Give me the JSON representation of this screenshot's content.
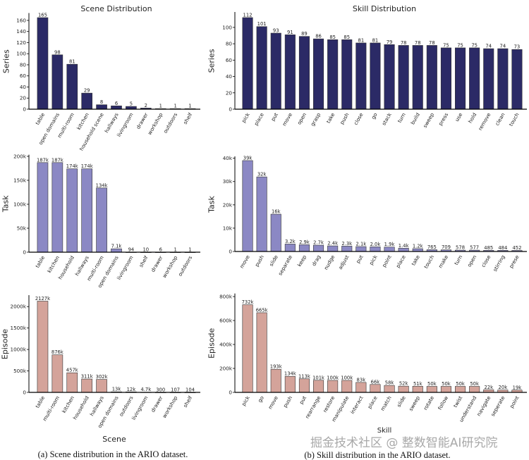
{
  "titles": {
    "scene": "Scene Distribution",
    "skill": "Skill Distribution"
  },
  "xlabels": {
    "scene": "Scene",
    "skill": "Skill"
  },
  "captions": {
    "a": "(a) Scene distribution in the ARIO dataset.",
    "b": "(b) Skill distribution in the ARIO dataset."
  },
  "watermark": "掘金技术社区 @ 整数智能AI研究院",
  "colors": {
    "series": "#2b2a66",
    "task": "#8b88c4",
    "episode": "#d4a39a",
    "edge": "#333333"
  },
  "chart_data": [
    {
      "type": "bar",
      "title": "Scene Distribution",
      "xlabel": "",
      "ylabel": "Series",
      "color": "#2b2a66",
      "categories": [
        "table",
        "open domains",
        "multi-room",
        "kitchen",
        "household scene",
        "hallways",
        "livingroom",
        "drawer",
        "workshop",
        "outdoors",
        "shelf"
      ],
      "values": [
        165,
        98,
        81,
        29,
        8,
        6,
        5,
        2,
        1,
        1,
        1
      ],
      "labels": [
        "165",
        "98",
        "81",
        "29",
        "8",
        "6",
        "5",
        "2",
        "1",
        "1",
        "1"
      ],
      "ylim": [
        0,
        172
      ],
      "yticks": [
        0,
        20,
        40,
        60,
        80,
        100,
        120,
        140,
        160
      ],
      "yticklabels": [
        "0",
        "20",
        "40",
        "60",
        "80",
        "100",
        "120",
        "140",
        "160"
      ],
      "grid": false
    },
    {
      "type": "bar",
      "title": "Skill Distribution",
      "xlabel": "",
      "ylabel": "Series",
      "color": "#2b2a66",
      "categories": [
        "pick",
        "place",
        "put",
        "move",
        "open",
        "grasp",
        "take",
        "push",
        "close",
        "go",
        "stack",
        "turn",
        "build",
        "sweep",
        "press",
        "use",
        "hold",
        "remove",
        "clean",
        "touch"
      ],
      "values": [
        112,
        101,
        93,
        91,
        89,
        86,
        85,
        85,
        81,
        81,
        79,
        78,
        78,
        78,
        75,
        75,
        75,
        74,
        74,
        73
      ],
      "labels": [
        "112",
        "101",
        "93",
        "91",
        "89",
        "86",
        "85",
        "85",
        "81",
        "81",
        "79",
        "78",
        "78",
        "78",
        "75",
        "75",
        "75",
        "74",
        "74",
        "73"
      ],
      "ylim": [
        0,
        118
      ],
      "yticks": [
        0,
        20,
        40,
        60,
        80,
        100
      ],
      "yticklabels": [
        "0",
        "20",
        "40",
        "60",
        "80",
        "100"
      ],
      "grid": false
    },
    {
      "type": "bar",
      "title": "",
      "xlabel": "",
      "ylabel": "Task",
      "color": "#8b88c4",
      "categories": [
        "table",
        "kitchen",
        "household",
        "hallways",
        "multi-room",
        "open domains",
        "livingroom",
        "shelf",
        "drawer",
        "workshop",
        "outdoors"
      ],
      "values": [
        187000,
        187000,
        174000,
        174000,
        134000,
        7100,
        94,
        10,
        6,
        1,
        1
      ],
      "labels": [
        "187k",
        "187k",
        "174k",
        "174k",
        "134k",
        "7.1k",
        "94",
        "10",
        "6",
        "1",
        "1"
      ],
      "ylim": [
        0,
        202000
      ],
      "yticks": [
        0,
        50000,
        100000,
        150000,
        200000
      ],
      "yticklabels": [
        "0",
        "50k",
        "100k",
        "150k",
        "200k"
      ],
      "grid": false
    },
    {
      "type": "bar",
      "title": "",
      "xlabel": "",
      "ylabel": "Task",
      "color": "#8b88c4",
      "categories": [
        "move",
        "push",
        "slide",
        "separate",
        "keep",
        "drag",
        "nudge",
        "adjust",
        "put",
        "pick",
        "point",
        "place",
        "take",
        "touch",
        "make",
        "turn",
        "open",
        "close",
        "stirring",
        "prese"
      ],
      "values": [
        39000,
        32000,
        16000,
        3200,
        2900,
        2700,
        2400,
        2300,
        2100,
        2000,
        1900,
        1400,
        1200,
        765,
        709,
        578,
        577,
        485,
        484,
        452
      ],
      "labels": [
        "39k",
        "32k",
        "16k",
        "3.2k",
        "2.9k",
        "2.7k",
        "2.4k",
        "2.3k",
        "2.1k",
        "2.0k",
        "1.9k",
        "1.4k",
        "1.2k",
        "765",
        "709",
        "578",
        "577",
        "485",
        "484",
        "452"
      ],
      "ylim": [
        0,
        40500
      ],
      "yticks": [
        0,
        10000,
        20000,
        30000,
        40000
      ],
      "yticklabels": [
        "0",
        "10k",
        "20k",
        "30k",
        "40k"
      ],
      "grid": false
    },
    {
      "type": "bar",
      "title": "",
      "xlabel": "Scene",
      "ylabel": "Episode",
      "color": "#d4a39a",
      "categories": [
        "table",
        "multi-room",
        "kitchen",
        "household",
        "hallways",
        "open domains",
        "outdoors",
        "livingroom",
        "drawer",
        "workshop",
        "shelf"
      ],
      "values": [
        2127000,
        876000,
        457000,
        311000,
        302000,
        13000,
        12000,
        4700,
        300,
        107,
        104
      ],
      "labels": [
        "2127k",
        "876k",
        "457k",
        "311k",
        "302k",
        "13k",
        "12k",
        "4.7k",
        "300",
        "107",
        "104"
      ],
      "ylim": [
        0,
        2250000
      ],
      "yticks": [
        0,
        500000,
        1000000,
        1500000,
        2000000
      ],
      "yticklabels": [
        "0",
        "500k",
        "1000k",
        "1500k",
        "2000k"
      ],
      "grid": false
    },
    {
      "type": "bar",
      "title": "",
      "xlabel": "Skill",
      "ylabel": "Episode",
      "color": "#d4a39a",
      "categories": [
        "pick",
        "go",
        "move",
        "push",
        "put",
        "rearrange",
        "restore",
        "manipulate",
        "interact",
        "place",
        "match",
        "slide",
        "sweep",
        "rotate",
        "follow",
        "twist",
        "understand",
        "navigate",
        "seperate",
        "point"
      ],
      "values": [
        732000,
        665000,
        193000,
        134000,
        113000,
        101000,
        100000,
        100000,
        83000,
        66000,
        58000,
        52000,
        51000,
        50000,
        50000,
        50000,
        50000,
        22000,
        20000,
        19000
      ],
      "labels": [
        "732k",
        "665k",
        "193k",
        "134k",
        "113k",
        "101k",
        "100k",
        "100k",
        "83k",
        "66k",
        "58k",
        "52k",
        "51k",
        "50k",
        "50k",
        "50k",
        "50k",
        "22k",
        "20k",
        "19k"
      ],
      "ylim": [
        0,
        820000
      ],
      "yticks": [
        0,
        200000,
        400000,
        600000,
        800000
      ],
      "yticklabels": [
        "0",
        "200k",
        "400k",
        "600k",
        "800k"
      ],
      "grid": false
    }
  ]
}
